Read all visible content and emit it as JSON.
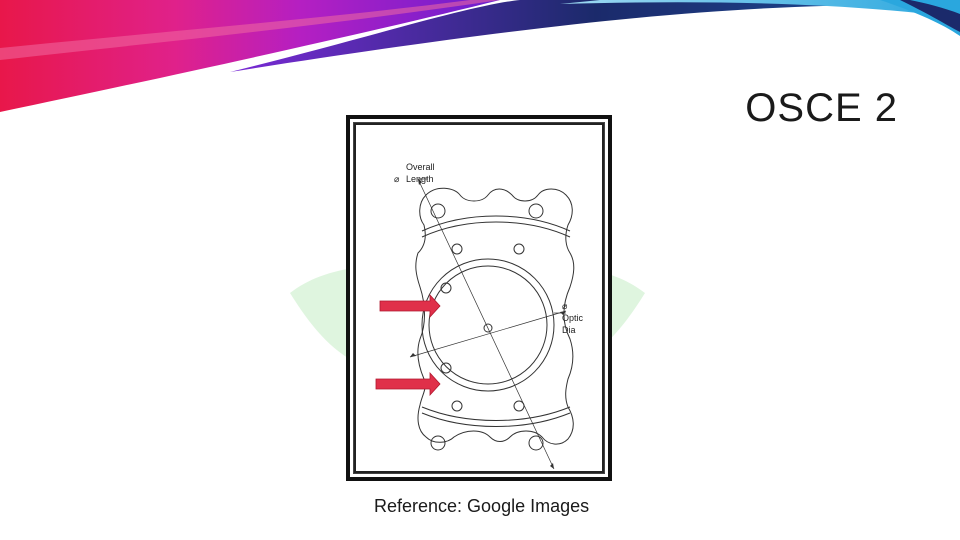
{
  "slide": {
    "title": "OSCE 2",
    "caption": "Reference: Google Images"
  },
  "figure": {
    "labels": {
      "overall_line1": "Overall",
      "overall_line2": "Length",
      "overall_symbol": "⌀",
      "optic_symbol": "⌀",
      "optic_line1": "Optic",
      "optic_line2": "Dia"
    },
    "arrow_color": "#e0304a"
  },
  "colors": {
    "banner_magenta": "#e0218a",
    "banner_navy": "#1b2a6b",
    "banner_cyan": "#3fb9e6",
    "watermark_green": "#d8f3d8"
  }
}
